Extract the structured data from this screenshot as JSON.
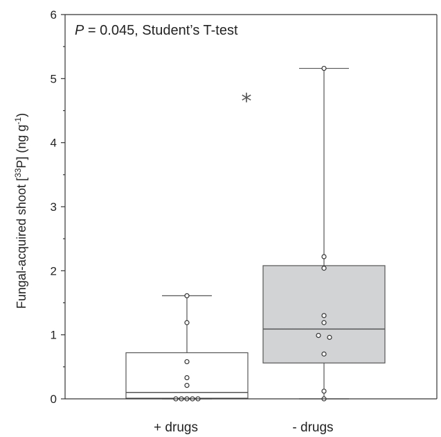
{
  "chart_data": {
    "type": "box",
    "ylabel": {
      "prefix": "Fungal-acquired shoot [",
      "isotope": "33",
      "element": "P] (ng g",
      "exponent": "-1",
      "suffix": ")"
    },
    "ylim": [
      0,
      6
    ],
    "yticks": [
      "0",
      "1",
      "2",
      "3",
      "4",
      "5",
      "6"
    ],
    "annotation": {
      "p_symbol": "P",
      "text": " = 0.045, Student’s T-test"
    },
    "significance_marker": "*",
    "groups": [
      {
        "label": "+ drugs",
        "fill": "#ffffff",
        "whisker_low": 0.0,
        "q1": 0.01,
        "median": 0.1,
        "q3": 0.72,
        "whisker_high": 1.61,
        "points": [
          0.0,
          0.0,
          0.0,
          0.0,
          0.0,
          0.21,
          0.33,
          0.58,
          1.19,
          1.61
        ]
      },
      {
        "label": "- drugs",
        "fill": "#d2d3d5",
        "whisker_low": 0.0,
        "q1": 0.56,
        "median": 1.09,
        "q3": 2.08,
        "whisker_high": 5.16,
        "points": [
          0.0,
          0.12,
          0.7,
          0.96,
          0.99,
          1.19,
          1.3,
          2.04,
          2.22,
          5.16
        ]
      }
    ],
    "point_jitter": [
      [
        -2,
        -1,
        0,
        1,
        2,
        0,
        0,
        0,
        0,
        0
      ],
      [
        0,
        0,
        0,
        1,
        -1,
        0,
        0,
        0,
        0,
        0
      ]
    ]
  }
}
